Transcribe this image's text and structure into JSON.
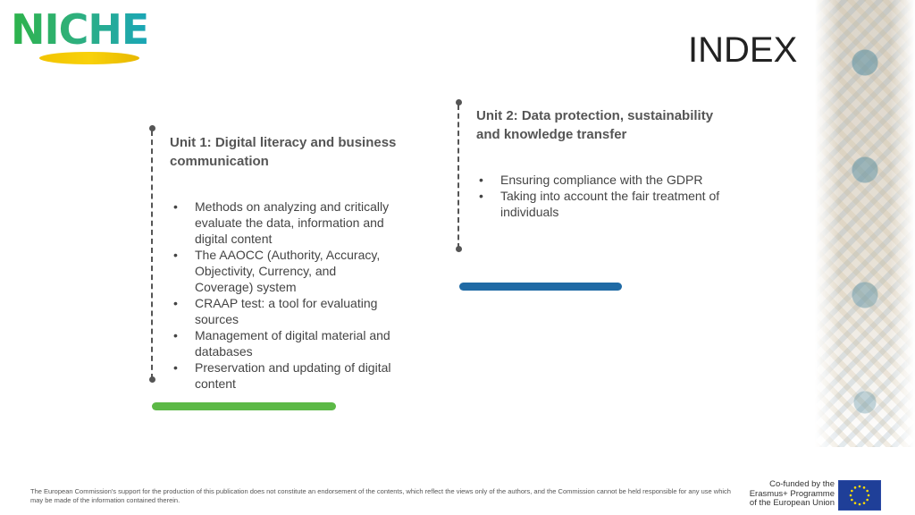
{
  "brand": {
    "logo_text": "NICHE",
    "title": "INDEX"
  },
  "units": [
    {
      "title_line1": "Unit 1: Digital literacy and business",
      "title_line2": "communication",
      "bullets": [
        "Methods on analyzing and critically evaluate the data, information and digital content",
        "The AAOCC (Authority, Accuracy, Objectivity, Currency, and Coverage) system",
        "CRAAP test: a tool for evaluating sources",
        "Management of digital material and databases",
        "Preservation and updating of digital content"
      ],
      "bar_color": "#5cb946"
    },
    {
      "title_line1": "Unit 2: Data protection, sustainability",
      "title_line2": "and knowledge transfer",
      "bullets": [
        "Ensuring compliance with the GDPR",
        "Taking into account the fair treatment of individuals"
      ],
      "bar_color": "#1f6aa5"
    }
  ],
  "footer": {
    "disclaimer": "The European Commission's support for the production of this publication does not constitute an endorsement of the contents, which reflect the views only of the authors, and the Commission cannot be held responsible for any use which may be made of the information contained therein.",
    "eu_line1": "Co-funded by the",
    "eu_line2": "Erasmus+ Programme",
    "eu_line3": "of the European Union"
  },
  "colors": {
    "eu_blue": "#1f3f98",
    "eu_star": "#ffdd00"
  }
}
